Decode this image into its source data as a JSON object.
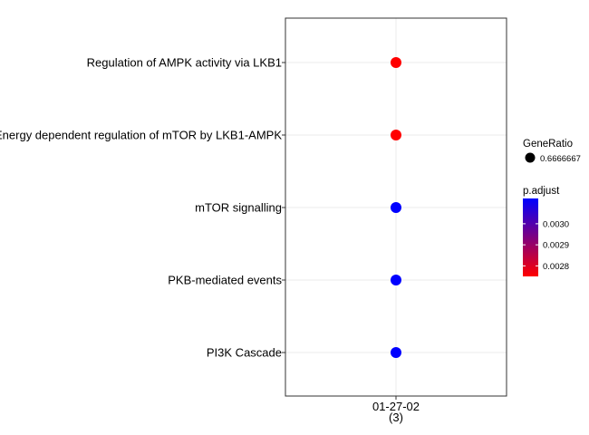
{
  "chart_data": {
    "type": "scatter",
    "title": "",
    "xlabel": "",
    "ylabel": "",
    "grid": true,
    "categories_x": [
      {
        "label": "01-27-02",
        "sublabel": "(3)"
      }
    ],
    "categories_y": [
      "Regulation of AMPK activity via LKB1",
      "Energy dependent regulation of mTOR by LKB1-AMPK",
      "mTOR signalling",
      "PKB-mediated events",
      "PI3K Cascade"
    ],
    "points": [
      {
        "x": "01-27-02",
        "y": "Regulation of AMPK activity via LKB1",
        "gene_ratio": 0.6666667,
        "p_adjust": 0.00275
      },
      {
        "x": "01-27-02",
        "y": "Energy dependent regulation of mTOR by LKB1-AMPK",
        "gene_ratio": 0.6666667,
        "p_adjust": 0.00275
      },
      {
        "x": "01-27-02",
        "y": "mTOR signalling",
        "gene_ratio": 0.6666667,
        "p_adjust": 0.00312
      },
      {
        "x": "01-27-02",
        "y": "PKB-mediated events",
        "gene_ratio": 0.6666667,
        "p_adjust": 0.00312
      },
      {
        "x": "01-27-02",
        "y": "PI3K Cascade",
        "gene_ratio": 0.6666667,
        "p_adjust": 0.00312
      }
    ],
    "legend": {
      "placement": "right",
      "size": {
        "title": "GeneRatio",
        "entries": [
          "0.6666667"
        ]
      },
      "color": {
        "title": "p.adjust",
        "range": [
          0.00275,
          0.00312
        ],
        "low_color": "#ff0000",
        "high_color": "#0000ff",
        "breaks": [
          0.003,
          0.0029,
          0.0028
        ],
        "break_labels": [
          "0.0030",
          "0.0029",
          "0.0028"
        ]
      }
    }
  }
}
